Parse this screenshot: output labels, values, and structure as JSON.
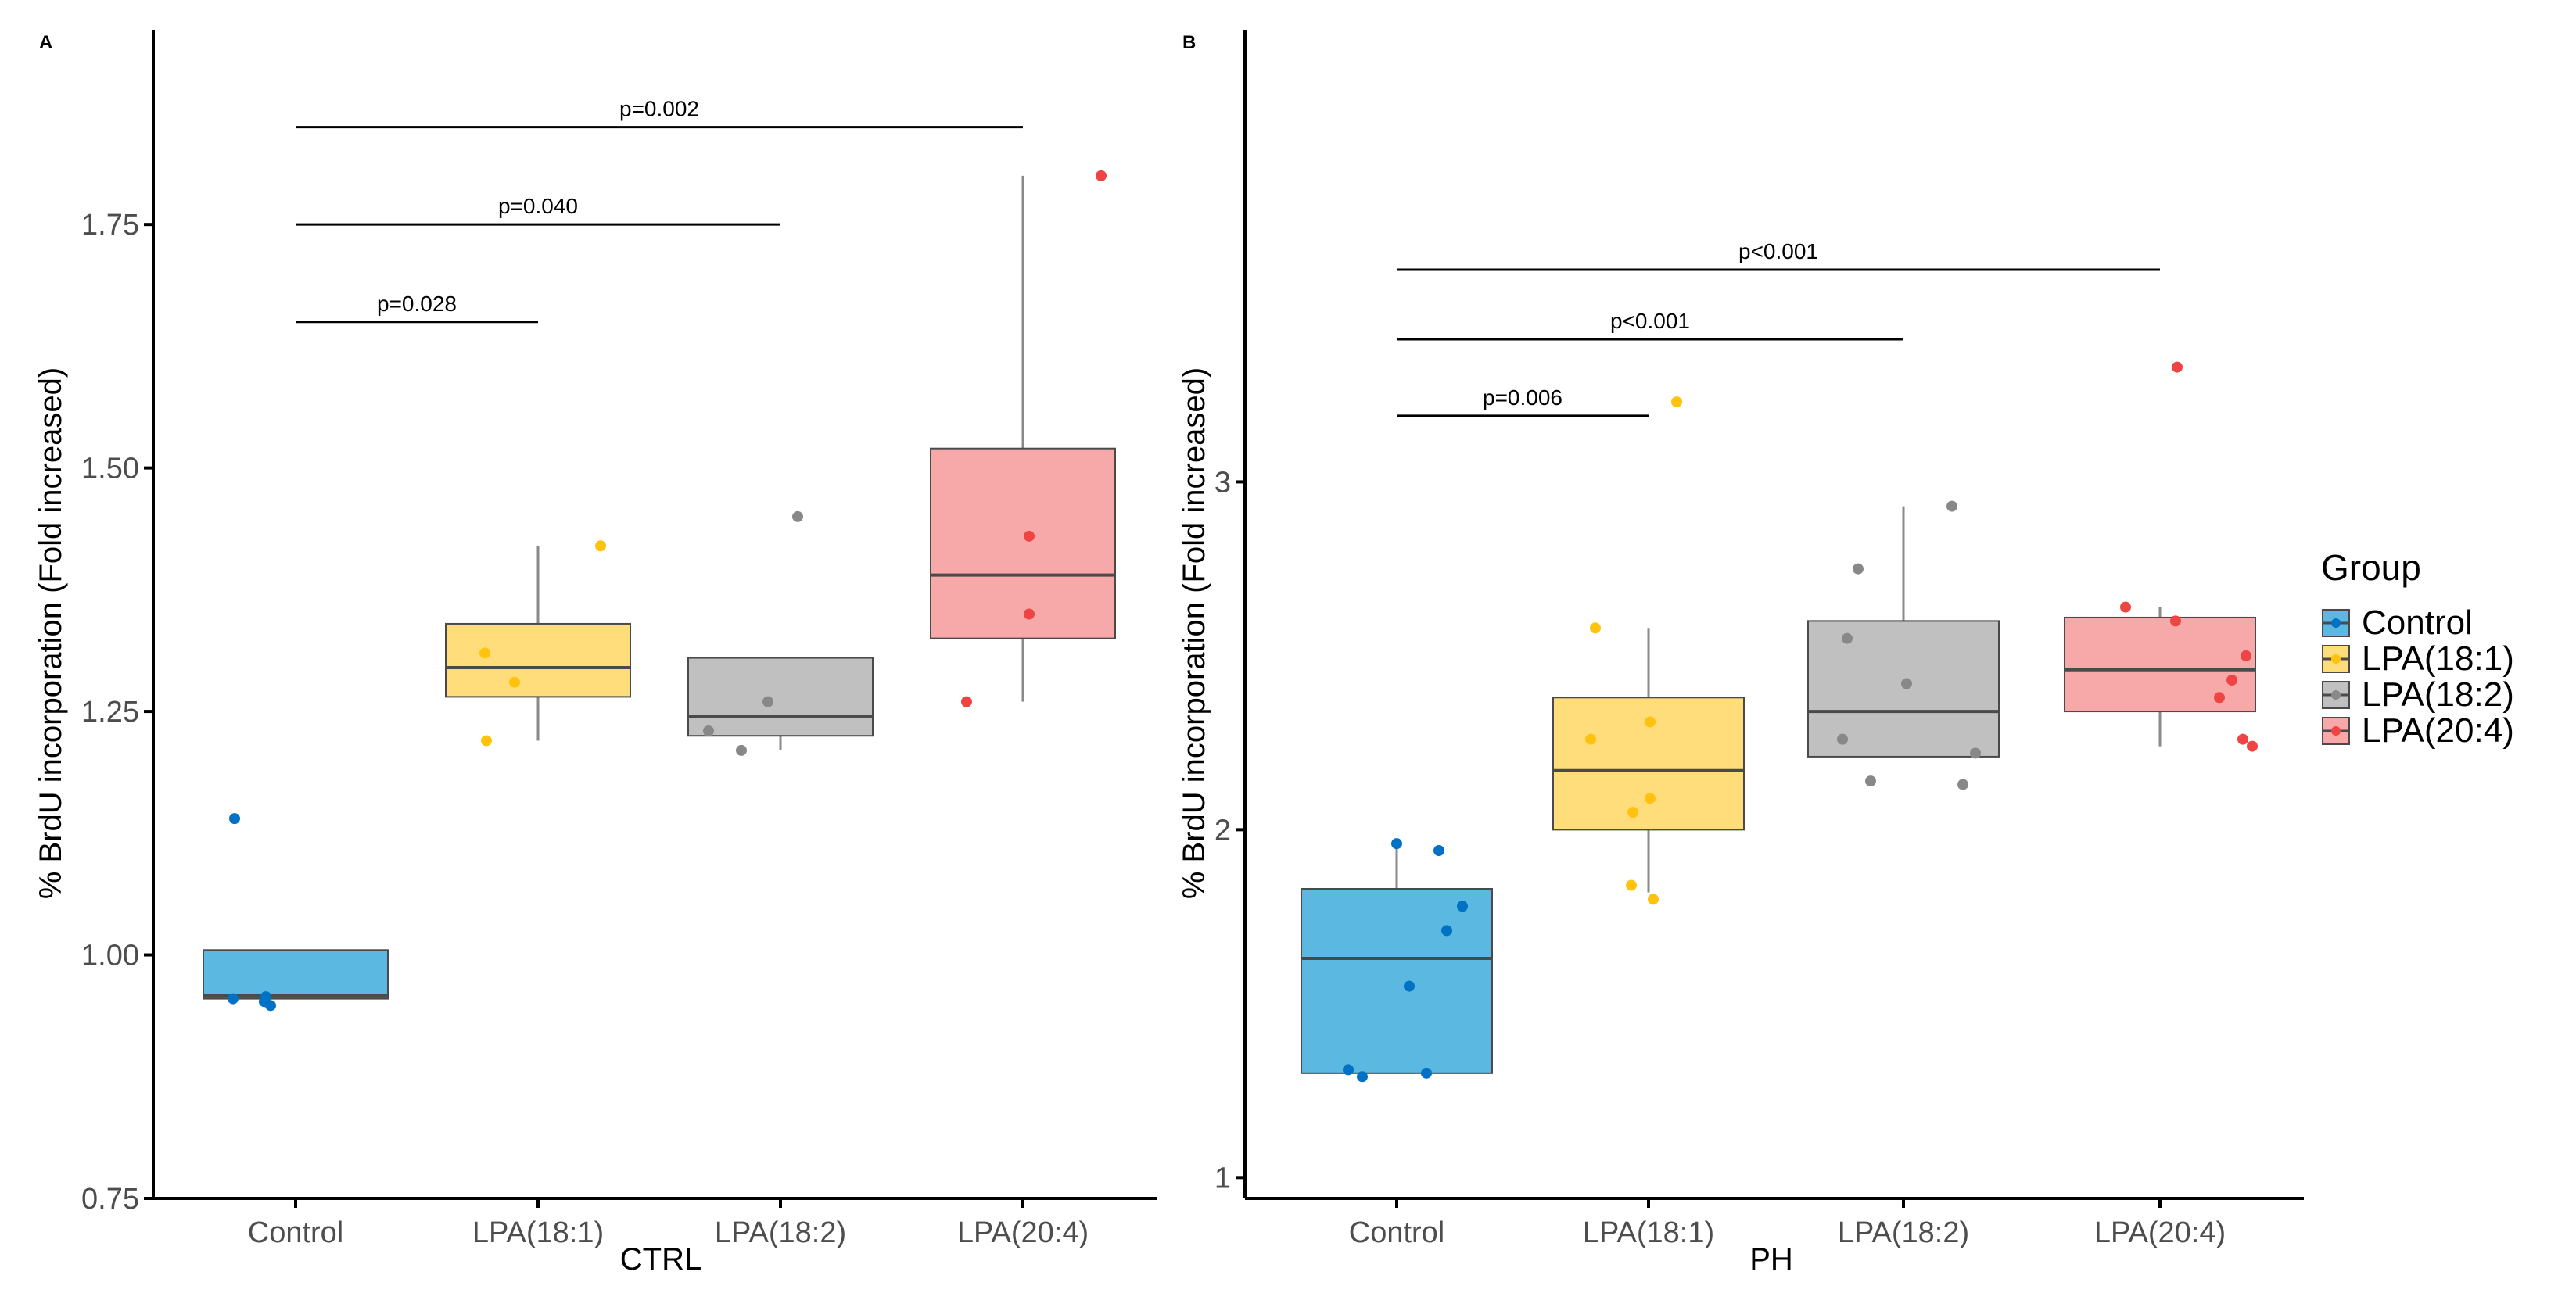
{
  "chart_data": [
    {
      "type": "box",
      "panel_label": "A",
      "xlabel": "CTRL",
      "ylabel": "% BrdU incorporation (Fold increased)",
      "ylim": [
        0.75,
        1.95
      ],
      "yticks": [
        "0.75",
        "1.00",
        "1.25",
        "1.50",
        "1.75"
      ],
      "categories": [
        "Control",
        "LPA(18:1)",
        "LPA(18:2)",
        "LPA(20:4)"
      ],
      "boxes": [
        {
          "group": "Control",
          "q1": 0.955,
          "median": 0.958,
          "q3": 1.005,
          "whisker_low": 0.955,
          "whisker_high": 1.005
        },
        {
          "group": "LPA(18:1)",
          "q1": 1.265,
          "median": 1.295,
          "q3": 1.34,
          "whisker_low": 1.22,
          "whisker_high": 1.42
        },
        {
          "group": "LPA(18:2)",
          "q1": 1.225,
          "median": 1.245,
          "q3": 1.305,
          "whisker_low": 1.21,
          "whisker_high": 1.305
        },
        {
          "group": "LPA(20:4)",
          "q1": 1.325,
          "median": 1.39,
          "q3": 1.52,
          "whisker_low": 1.26,
          "whisker_high": 1.8
        }
      ],
      "points": [
        {
          "group": "Control",
          "values": [
            1.14,
            0.955,
            0.957,
            0.952,
            0.948
          ]
        },
        {
          "group": "LPA(18:1)",
          "values": [
            1.31,
            1.22,
            1.28,
            1.42
          ]
        },
        {
          "group": "LPA(18:2)",
          "values": [
            1.23,
            1.21,
            1.26,
            1.45
          ]
        },
        {
          "group": "LPA(20:4)",
          "values": [
            1.26,
            1.43,
            1.35,
            1.8
          ]
        }
      ],
      "significance": [
        {
          "from": "Control",
          "to": "LPA(18:1)",
          "y": 1.65,
          "label": "p=0.028"
        },
        {
          "from": "Control",
          "to": "LPA(18:2)",
          "y": 1.75,
          "label": "p=0.040"
        },
        {
          "from": "Control",
          "to": "LPA(20:4)",
          "y": 1.85,
          "label": "p=0.002"
        }
      ]
    },
    {
      "type": "box",
      "panel_label": "B",
      "xlabel": "PH",
      "ylabel": "% BrdU incorporation (Fold increased)",
      "ylim": [
        0.94,
        4.3
      ],
      "yticks": [
        "1",
        "2",
        "3"
      ],
      "categories": [
        "Control",
        "LPA(18:1)",
        "LPA(18:2)",
        "LPA(20:4)"
      ],
      "boxes": [
        {
          "group": "Control",
          "q1": 1.3,
          "median": 1.63,
          "q3": 1.83,
          "whisker_low": 1.3,
          "whisker_high": 1.96
        },
        {
          "group": "LPA(18:1)",
          "q1": 2.0,
          "median": 2.17,
          "q3": 2.38,
          "whisker_low": 1.82,
          "whisker_high": 2.58
        },
        {
          "group": "LPA(18:2)",
          "q1": 2.21,
          "median": 2.34,
          "q3": 2.6,
          "whisker_low": 2.21,
          "whisker_high": 2.93
        },
        {
          "group": "LPA(20:4)",
          "q1": 2.34,
          "median": 2.46,
          "q3": 2.61,
          "whisker_low": 2.24,
          "whisker_high": 2.64
        }
      ],
      "points": [
        {
          "group": "Control",
          "values": [
            1.96,
            1.94,
            1.78,
            1.71,
            1.55,
            1.31,
            1.29,
            1.3
          ]
        },
        {
          "group": "LPA(18:1)",
          "values": [
            2.58,
            2.26,
            2.05,
            3.23,
            2.31,
            2.09,
            1.84,
            1.8
          ]
        },
        {
          "group": "LPA(18:2)",
          "values": [
            2.75,
            2.55,
            2.26,
            2.14,
            2.93,
            2.42,
            2.13,
            2.22
          ]
        },
        {
          "group": "LPA(20:4)",
          "values": [
            3.33,
            2.64,
            2.6,
            2.43,
            2.38,
            2.5,
            2.26,
            2.24
          ]
        }
      ],
      "significance": [
        {
          "from": "Control",
          "to": "LPA(18:1)",
          "y": 3.19,
          "label": "p=0.006"
        },
        {
          "from": "Control",
          "to": "LPA(18:2)",
          "y": 3.41,
          "label": "p<0.001"
        },
        {
          "from": "Control",
          "to": "LPA(20:4)",
          "y": 3.61,
          "label": "p<0.001"
        }
      ]
    }
  ],
  "legend": {
    "title": "Group",
    "items": [
      {
        "label": "Control",
        "fill": "#5bb8e0",
        "point": "#0071c5"
      },
      {
        "label": "LPA(18:1)",
        "fill": "#ffdd7a",
        "point": "#ffc20e"
      },
      {
        "label": "LPA(18:2)",
        "fill": "#c0c0c0",
        "point": "#888888"
      },
      {
        "label": "LPA(20:4)",
        "fill": "#f7a8a8",
        "point": "#ee4444"
      }
    ]
  }
}
